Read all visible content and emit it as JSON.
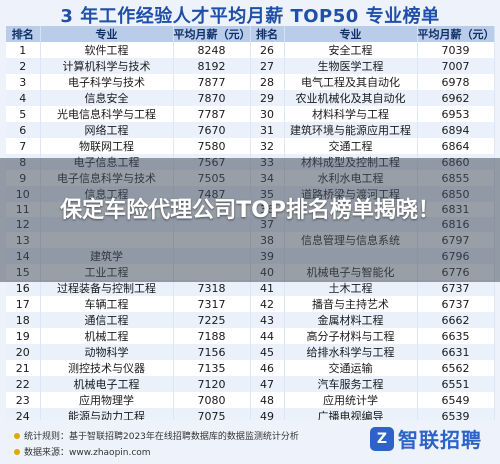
{
  "title": "3 年工作经验人才平均月薪 TOP50 专业榜单",
  "headers": [
    "排名",
    "专业",
    "平均月薪（元）",
    "排名",
    "专业",
    "平均月薪（元）"
  ],
  "rows": [
    [
      "1",
      "软件工程",
      "8248",
      "26",
      "安全工程",
      "7039"
    ],
    [
      "2",
      "计算机科学与技术",
      "8192",
      "27",
      "生物医学工程",
      "7007"
    ],
    [
      "3",
      "电子科学与技术",
      "7877",
      "28",
      "电气工程及其自动化",
      "6978"
    ],
    [
      "4",
      "信息安全",
      "7870",
      "29",
      "农业机械化及其自动化",
      "6962"
    ],
    [
      "5",
      "光电信息科学与工程",
      "7787",
      "30",
      "材料科学与工程",
      "6953"
    ],
    [
      "6",
      "网络工程",
      "7670",
      "31",
      "建筑环境与能源应用工程",
      "6894"
    ],
    [
      "7",
      "物联网工程",
      "7580",
      "32",
      "交通工程",
      "6864"
    ],
    [
      "8",
      "电子信息工程",
      "7567",
      "33",
      "材料成型及控制工程",
      "6860"
    ],
    [
      "9",
      "电子信息科学与技术",
      "7505",
      "34",
      "水利水电工程",
      "6855"
    ],
    [
      "10",
      "信息工程",
      "7487",
      "35",
      "道路桥梁与渡河工程",
      "6850"
    ],
    [
      "11",
      "",
      "",
      "36",
      "",
      "6831"
    ],
    [
      "12",
      "",
      "",
      "37",
      "",
      "6816"
    ],
    [
      "13",
      "",
      "",
      "38",
      "信息管理与信息系统",
      "6797"
    ],
    [
      "14",
      "建筑学",
      "",
      "39",
      "",
      "6796"
    ],
    [
      "15",
      "工业工程",
      "",
      "40",
      "机械电子与智能化",
      "6776"
    ],
    [
      "16",
      "过程装备与控制工程",
      "7318",
      "41",
      "土木工程",
      "6737"
    ],
    [
      "17",
      "车辆工程",
      "7317",
      "42",
      "播音与主持艺术",
      "6737"
    ],
    [
      "18",
      "通信工程",
      "7225",
      "43",
      "金属材料工程",
      "6662"
    ],
    [
      "19",
      "机械工程",
      "7188",
      "44",
      "高分子材料与工程",
      "6635"
    ],
    [
      "20",
      "动物科学",
      "7156",
      "45",
      "给排水科学与工程",
      "6631"
    ],
    [
      "21",
      "测控技术与仪器",
      "7135",
      "46",
      "交通运输",
      "6562"
    ],
    [
      "22",
      "机械电子工程",
      "7120",
      "47",
      "汽车服务工程",
      "6551"
    ],
    [
      "23",
      "应用物理学",
      "7080",
      "48",
      "应用统计学",
      "6549"
    ],
    [
      "24",
      "能源与动力工程",
      "7075",
      "49",
      "广播电视编导",
      "6539"
    ],
    [
      "25",
      "机械设计制造及其自动化",
      "7050",
      "50",
      "生物技术",
      "6521"
    ]
  ],
  "footer": {
    "rule": "统计规则：基于智联招聘2023年在线招聘数据库的数据监测统计分析",
    "source": "数据来源：www.zhaopin.com"
  },
  "logo": {
    "mark": "Z",
    "text": "智联招聘"
  },
  "headline": "保定车险代理公司TOP排名榜单揭晓！"
}
